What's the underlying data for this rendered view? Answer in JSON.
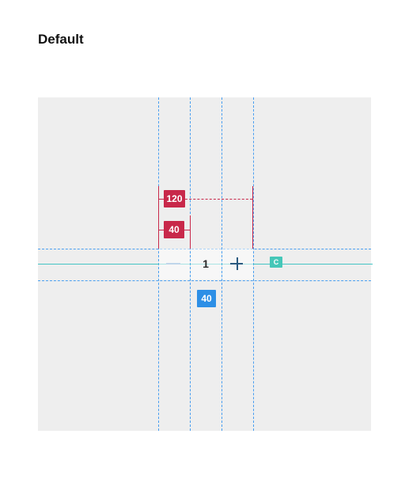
{
  "title": "Default",
  "stepper": {
    "value": "1",
    "decrement_icon": "minus-icon",
    "increment_icon": "plus-icon"
  },
  "annotations": {
    "total_width": "120",
    "button_width": "40",
    "height": "40",
    "center_marker": "C"
  },
  "colors": {
    "canvas": "#eeeeee",
    "guide": "#4a9ff0",
    "centerline": "#44c4c4",
    "measure_red": "#c8284a",
    "measure_blue": "#2d8fe6",
    "center_marker": "#45c7b8"
  }
}
